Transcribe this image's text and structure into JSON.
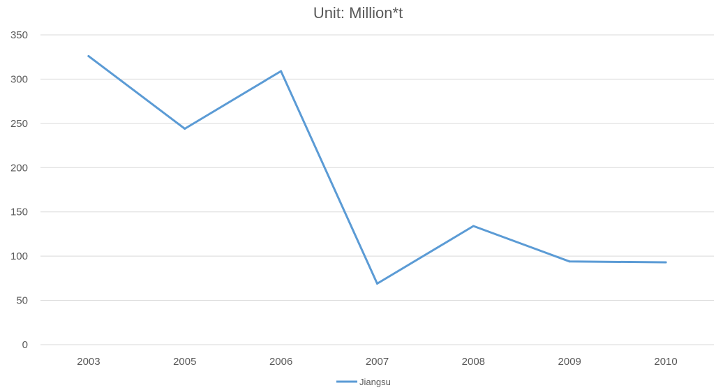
{
  "chart_data": {
    "type": "line",
    "title": "Unit: Million*t",
    "xlabel": "",
    "ylabel": "",
    "categories": [
      "2003",
      "2005",
      "2006",
      "2007",
      "2008",
      "2009",
      "2010"
    ],
    "series": [
      {
        "name": "Jiangsu",
        "values": [
          326,
          244,
          309,
          69,
          134,
          94,
          93
        ],
        "color": "#5b9bd5"
      }
    ],
    "ylim": [
      0,
      350
    ],
    "yticks": [
      0,
      50,
      100,
      150,
      200,
      250,
      300,
      350
    ],
    "grid": true,
    "legend_position": "bottom"
  }
}
